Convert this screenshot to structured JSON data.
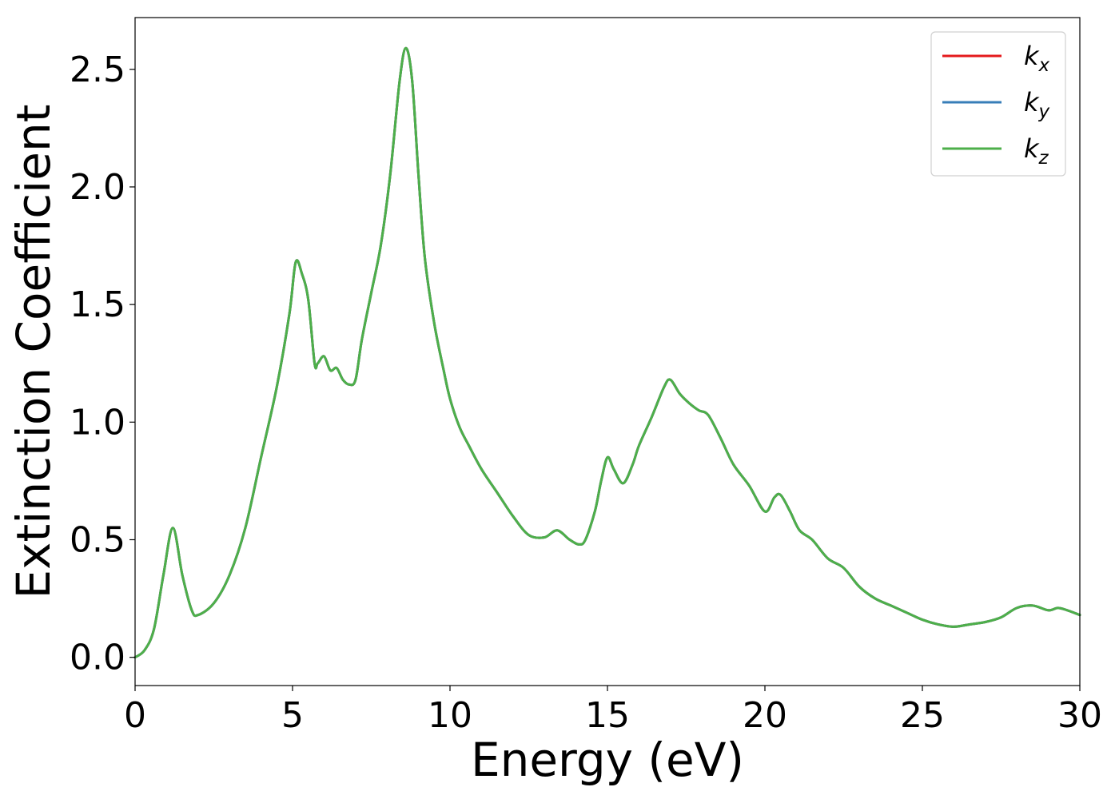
{
  "chart_data": {
    "type": "line",
    "title": "",
    "xlabel": "Energy (eV)",
    "ylabel": "Extinction Coefficient",
    "xlim": [
      0,
      30
    ],
    "ylim": [
      -0.12,
      2.72
    ],
    "xticks": [
      0,
      5,
      10,
      15,
      20,
      25,
      30
    ],
    "xtick_labels": [
      "0",
      "5",
      "10",
      "15",
      "20",
      "25",
      "30"
    ],
    "yticks": [
      0.0,
      0.5,
      1.0,
      1.5,
      2.0,
      2.5
    ],
    "ytick_labels": [
      "0.0",
      "0.5",
      "1.0",
      "1.5",
      "2.0",
      "2.5"
    ],
    "grid": false,
    "legend_position": "top-right",
    "x": [
      0,
      0.3,
      0.6,
      0.9,
      1.2,
      1.5,
      1.8,
      2.0,
      2.5,
      3.0,
      3.5,
      4.0,
      4.5,
      4.9,
      5.1,
      5.3,
      5.5,
      5.7,
      5.8,
      6.0,
      6.2,
      6.4,
      6.6,
      6.8,
      7.0,
      7.2,
      7.5,
      7.8,
      8.1,
      8.4,
      8.6,
      8.8,
      9.0,
      9.2,
      9.5,
      9.8,
      10.0,
      10.3,
      10.6,
      11.0,
      11.5,
      12.0,
      12.5,
      13.0,
      13.4,
      13.8,
      14.1,
      14.3,
      14.6,
      14.8,
      15.0,
      15.2,
      15.5,
      15.8,
      16.0,
      16.4,
      16.8,
      17.0,
      17.3,
      17.6,
      17.9,
      18.2,
      18.6,
      19.0,
      19.5,
      20.0,
      20.3,
      20.5,
      20.8,
      21.1,
      21.5,
      22.0,
      22.5,
      23.0,
      23.5,
      24.0,
      24.5,
      25.0,
      25.5,
      26.0,
      26.5,
      27.0,
      27.5,
      28.0,
      28.5,
      29.0,
      29.3,
      29.6,
      30.0
    ],
    "series": [
      {
        "name": "k_x",
        "color": "#e41a1c",
        "y": [
          0.0,
          0.03,
          0.12,
          0.35,
          0.55,
          0.35,
          0.2,
          0.18,
          0.23,
          0.35,
          0.55,
          0.85,
          1.15,
          1.46,
          1.68,
          1.63,
          1.52,
          1.25,
          1.25,
          1.28,
          1.22,
          1.23,
          1.18,
          1.16,
          1.18,
          1.35,
          1.55,
          1.75,
          2.05,
          2.45,
          2.59,
          2.45,
          2.05,
          1.7,
          1.42,
          1.22,
          1.1,
          0.98,
          0.9,
          0.8,
          0.7,
          0.6,
          0.52,
          0.51,
          0.54,
          0.5,
          0.48,
          0.5,
          0.62,
          0.75,
          0.85,
          0.8,
          0.74,
          0.82,
          0.9,
          1.02,
          1.15,
          1.18,
          1.12,
          1.08,
          1.05,
          1.03,
          0.93,
          0.82,
          0.73,
          0.62,
          0.68,
          0.69,
          0.62,
          0.54,
          0.5,
          0.42,
          0.38,
          0.3,
          0.25,
          0.22,
          0.19,
          0.16,
          0.14,
          0.13,
          0.14,
          0.15,
          0.17,
          0.21,
          0.22,
          0.2,
          0.21,
          0.2,
          0.18
        ]
      },
      {
        "name": "k_y",
        "color": "#377eb8",
        "y": [
          0.0,
          0.03,
          0.12,
          0.35,
          0.55,
          0.35,
          0.2,
          0.18,
          0.23,
          0.35,
          0.55,
          0.85,
          1.15,
          1.46,
          1.68,
          1.63,
          1.52,
          1.25,
          1.25,
          1.28,
          1.22,
          1.23,
          1.18,
          1.16,
          1.18,
          1.35,
          1.55,
          1.75,
          2.05,
          2.45,
          2.59,
          2.45,
          2.05,
          1.7,
          1.42,
          1.22,
          1.1,
          0.98,
          0.9,
          0.8,
          0.7,
          0.6,
          0.52,
          0.51,
          0.54,
          0.5,
          0.48,
          0.5,
          0.62,
          0.75,
          0.85,
          0.8,
          0.74,
          0.82,
          0.9,
          1.02,
          1.15,
          1.18,
          1.12,
          1.08,
          1.05,
          1.03,
          0.93,
          0.82,
          0.73,
          0.62,
          0.68,
          0.69,
          0.62,
          0.54,
          0.5,
          0.42,
          0.38,
          0.3,
          0.25,
          0.22,
          0.19,
          0.16,
          0.14,
          0.13,
          0.14,
          0.15,
          0.17,
          0.21,
          0.22,
          0.2,
          0.21,
          0.2,
          0.18
        ]
      },
      {
        "name": "k_z",
        "color": "#4daf4a",
        "y": [
          0.0,
          0.03,
          0.12,
          0.35,
          0.55,
          0.35,
          0.2,
          0.18,
          0.23,
          0.35,
          0.55,
          0.85,
          1.15,
          1.46,
          1.68,
          1.63,
          1.52,
          1.25,
          1.25,
          1.28,
          1.22,
          1.23,
          1.18,
          1.16,
          1.18,
          1.35,
          1.55,
          1.75,
          2.05,
          2.45,
          2.59,
          2.45,
          2.05,
          1.7,
          1.42,
          1.22,
          1.1,
          0.98,
          0.9,
          0.8,
          0.7,
          0.6,
          0.52,
          0.51,
          0.54,
          0.5,
          0.48,
          0.5,
          0.62,
          0.75,
          0.85,
          0.8,
          0.74,
          0.82,
          0.9,
          1.02,
          1.15,
          1.18,
          1.12,
          1.08,
          1.05,
          1.03,
          0.93,
          0.82,
          0.73,
          0.62,
          0.68,
          0.69,
          0.62,
          0.54,
          0.5,
          0.42,
          0.38,
          0.3,
          0.25,
          0.22,
          0.19,
          0.16,
          0.14,
          0.13,
          0.14,
          0.15,
          0.17,
          0.21,
          0.22,
          0.2,
          0.21,
          0.2,
          0.18
        ]
      }
    ],
    "legend": [
      {
        "symbol": "k",
        "subscript": "x",
        "color": "#e41a1c"
      },
      {
        "symbol": "k",
        "subscript": "y",
        "color": "#377eb8"
      },
      {
        "symbol": "k",
        "subscript": "z",
        "color": "#4daf4a"
      }
    ]
  }
}
